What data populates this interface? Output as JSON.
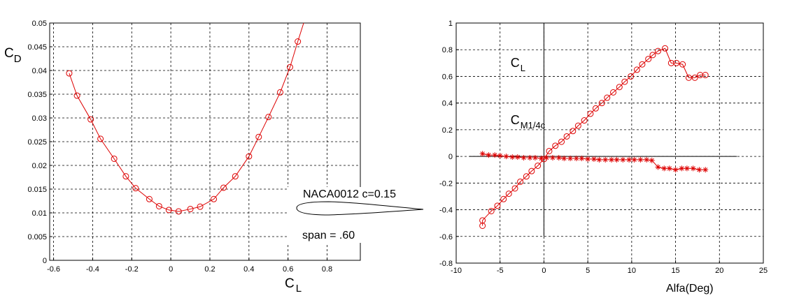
{
  "chart_data": [
    {
      "type": "line",
      "xlabel": "C",
      "xlabel_sub": "L",
      "ylabel": "C",
      "ylabel_sub": "D",
      "xlim": [
        -0.62,
        0.97
      ],
      "ylim": [
        0,
        0.05
      ],
      "grid": true,
      "x_ticks": [
        -0.6,
        -0.4,
        -0.2,
        0,
        0.2,
        0.4,
        0.6,
        0.8
      ],
      "x_tick_labels": [
        "-0.6",
        "-0.4",
        "-0.2",
        "0",
        "0.2",
        "0.4",
        "0.6",
        "0.8"
      ],
      "y_ticks": [
        0,
        0.005,
        0.01,
        0.015,
        0.02,
        0.025,
        0.03,
        0.035,
        0.04,
        0.045,
        0.05
      ],
      "y_tick_labels": [
        "0",
        "0.005",
        "0.01",
        "0.015",
        "0.02",
        "0.025",
        "0.03",
        "0.035",
        "0.04",
        "0.045",
        "0.05"
      ],
      "series": [
        {
          "color": "#dd0000",
          "marker": "circle",
          "x": [
            -0.52,
            -0.48,
            -0.41,
            -0.36,
            -0.29,
            -0.23,
            -0.18,
            -0.11,
            -0.06,
            -0.01,
            0.04,
            0.1,
            0.15,
            0.22,
            0.27,
            0.33,
            0.4,
            0.45,
            0.5,
            0.56,
            0.61,
            0.65
          ],
          "y": [
            0.0394,
            0.0347,
            0.0297,
            0.0256,
            0.0214,
            0.0177,
            0.0152,
            0.0129,
            0.0114,
            0.0106,
            0.0103,
            0.0108,
            0.0113,
            0.0129,
            0.0153,
            0.0177,
            0.0219,
            0.026,
            0.0302,
            0.0354,
            0.0407,
            0.0461
          ],
          "line_x": [
            -0.52,
            -0.48,
            -0.41,
            -0.36,
            -0.29,
            -0.23,
            -0.18,
            -0.11,
            -0.06,
            -0.01,
            0.04,
            0.1,
            0.15,
            0.22,
            0.27,
            0.33,
            0.4,
            0.45,
            0.5,
            0.56,
            0.61,
            0.65,
            0.68
          ],
          "line_y": [
            0.0394,
            0.0347,
            0.0297,
            0.0256,
            0.0214,
            0.0177,
            0.0152,
            0.0129,
            0.0114,
            0.0106,
            0.0103,
            0.0108,
            0.0113,
            0.0129,
            0.0153,
            0.0177,
            0.0219,
            0.026,
            0.0302,
            0.0354,
            0.0407,
            0.0461,
            0.05
          ]
        }
      ]
    },
    {
      "type": "line",
      "xlabel": "Alfa(Deg)",
      "xlim": [
        -10,
        25
      ],
      "ylim": [
        -0.8,
        1
      ],
      "grid": true,
      "x_ticks": [
        -10,
        -5,
        0,
        5,
        10,
        15,
        20,
        25
      ],
      "x_tick_labels": [
        "-10",
        "-5",
        "0",
        "5",
        "10",
        "15",
        "20",
        "25"
      ],
      "y_ticks": [
        -0.8,
        -0.6,
        -0.4,
        -0.2,
        0,
        0.2,
        0.4,
        0.6,
        0.8,
        1
      ],
      "y_tick_labels": [
        "-0.8",
        "-0.6",
        "-0.4",
        "-0.2",
        "0",
        "0.2",
        "0.4",
        "0.6",
        "0.8",
        "1"
      ],
      "reference_lines": {
        "x_at": 0,
        "y_at": 0,
        "y_from": -0.6,
        "y_to": 1,
        "x_from": -8.5,
        "x_to": 22
      },
      "annotations": [
        {
          "text": "C",
          "sub": "L",
          "x": -3.8,
          "y": 0.67
        },
        {
          "text": "C",
          "sub": "M1/4c",
          "x": -3.8,
          "y": 0.24
        }
      ],
      "series": [
        {
          "color": "#dd0000",
          "marker": "circle",
          "x": [
            -7.0,
            -7.0,
            -6.0,
            -5.3,
            -4.6,
            -4.0,
            -3.3,
            -2.7,
            -2.0,
            -1.4,
            -0.7,
            0.0,
            0.6,
            1.3,
            2.0,
            2.6,
            3.3,
            3.9,
            4.6,
            5.3,
            5.9,
            6.6,
            7.2,
            7.9,
            8.6,
            9.2,
            9.9,
            10.6,
            11.2,
            11.9,
            12.4,
            13.0,
            13.8,
            14.5,
            15.1,
            15.8,
            16.5,
            17.2,
            17.8,
            18.4
          ],
          "y": [
            -0.52,
            -0.48,
            -0.41,
            -0.37,
            -0.32,
            -0.28,
            -0.24,
            -0.19,
            -0.15,
            -0.11,
            -0.07,
            -0.02,
            0.04,
            0.08,
            0.11,
            0.15,
            0.19,
            0.23,
            0.27,
            0.32,
            0.36,
            0.4,
            0.44,
            0.48,
            0.52,
            0.56,
            0.6,
            0.65,
            0.69,
            0.73,
            0.76,
            0.79,
            0.81,
            0.7,
            0.7,
            0.69,
            0.59,
            0.59,
            0.61,
            0.61
          ],
          "marker_x": [
            -7.0,
            -7.0,
            -6.0,
            -5.3,
            -4.6,
            -4.0,
            -3.3,
            -2.7,
            -2.0,
            -1.4,
            -0.7,
            0.0,
            0.6,
            1.3,
            2.0,
            2.6,
            3.3,
            3.9,
            4.6,
            5.3,
            5.9,
            6.6,
            7.2,
            7.9,
            8.6,
            9.2,
            9.9,
            10.6,
            11.2,
            11.9,
            12.4,
            13.0,
            13.8,
            14.5,
            15.1,
            15.8,
            16.5,
            17.2,
            17.8,
            18.4
          ],
          "marker_y": [
            -0.52,
            -0.48,
            -0.41,
            -0.37,
            -0.32,
            -0.28,
            -0.24,
            -0.19,
            -0.15,
            -0.11,
            -0.07,
            -0.02,
            0.04,
            0.08,
            0.11,
            0.15,
            0.19,
            0.23,
            0.27,
            0.32,
            0.36,
            0.4,
            0.44,
            0.48,
            0.52,
            0.56,
            0.6,
            0.65,
            0.69,
            0.73,
            0.76,
            0.79,
            0.81,
            0.7,
            0.7,
            0.69,
            0.59,
            0.59,
            0.61,
            0.61
          ]
        },
        {
          "color": "#dd0000",
          "marker": "asterisk",
          "x": [
            -7.0,
            -6.3,
            -5.6,
            -5.0,
            -4.3,
            -3.6,
            -3.0,
            -2.3,
            -1.6,
            -1.0,
            -0.3,
            0.3,
            1.0,
            1.7,
            2.3,
            3.0,
            3.7,
            4.3,
            5.0,
            5.7,
            6.3,
            7.0,
            7.7,
            8.3,
            9.0,
            9.7,
            10.3,
            11.0,
            11.7,
            12.3,
            13.0,
            13.7,
            14.3,
            15.0,
            15.7,
            16.3,
            17.0,
            17.7,
            18.4
          ],
          "y": [
            0.02,
            0.01,
            0.01,
            0.005,
            0.0,
            -0.005,
            -0.005,
            -0.01,
            -0.01,
            -0.01,
            -0.015,
            -0.01,
            -0.01,
            -0.01,
            -0.015,
            -0.015,
            -0.015,
            -0.015,
            -0.02,
            -0.02,
            -0.025,
            -0.025,
            -0.025,
            -0.025,
            -0.025,
            -0.025,
            -0.025,
            -0.025,
            -0.025,
            -0.03,
            -0.08,
            -0.09,
            -0.09,
            -0.1,
            -0.09,
            -0.09,
            -0.09,
            -0.1,
            -0.1
          ]
        }
      ]
    }
  ],
  "inset": {
    "title": "NACA0012 c=0.15",
    "span_label": "span = .60"
  },
  "colors": {
    "series": "#dd0000",
    "grid": "#000000",
    "axis": "#000000"
  }
}
